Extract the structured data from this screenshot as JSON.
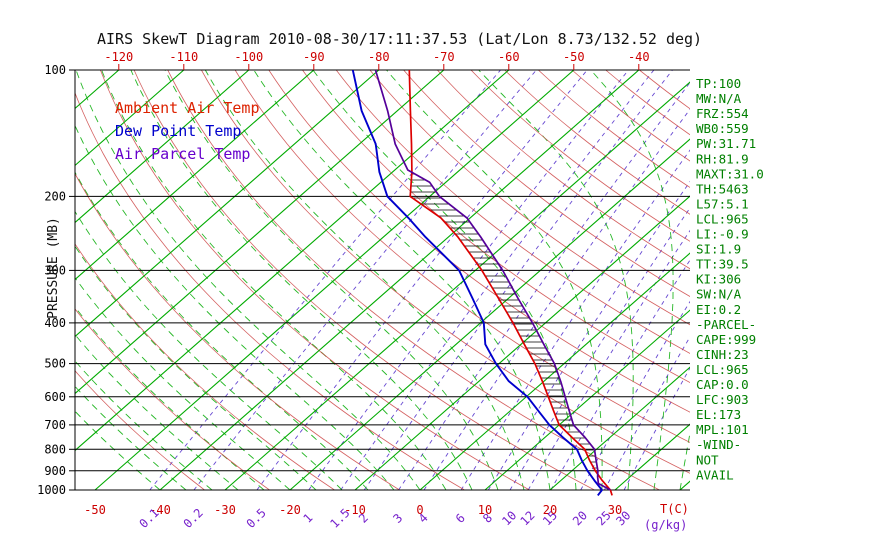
{
  "title": "AIRS SkewT Diagram 2010-08-30/17:11:37.53 (Lat/Lon 8.73/132.52 deg)",
  "legend": {
    "ambient": "Ambient Air Temp",
    "dewpoint": "Dew Point Temp",
    "parcel": "Air Parcel Temp"
  },
  "axes": {
    "pressure_label": "PRESSURE (MB)",
    "pressure_ticks": [
      100,
      200,
      300,
      400,
      500,
      600,
      700,
      800,
      900,
      1000
    ],
    "top_temp_ticks": [
      -120,
      -110,
      -100,
      -90,
      -80,
      -70,
      -60,
      -50,
      -40
    ],
    "bottom_temp_ticks": [
      -50,
      -40,
      -30,
      -20,
      -10,
      0,
      10,
      20,
      30
    ],
    "temp_unit": "T(C)",
    "mixing_ratio_unit": "(g/kg)"
  },
  "stats": [
    "TP:100",
    "MW:N/A",
    "FRZ:554",
    "WB0:559",
    "PW:31.71",
    "RH:81.9",
    "MAXT:31.0",
    "TH:5463",
    "L57:5.1",
    "LCL:965",
    "LI:-0.9",
    "SI:1.9",
    "TT:39.5",
    "KI:306",
    "SW:N/A",
    "EI:0.2",
    "-PARCEL-",
    "CAPE:999",
    "CINH:23",
    "LCL:965",
    "CAP:0.0",
    "LFC:903",
    "EL:173",
    "MPL:101",
    "-WIND-",
    "NOT",
    "AVAIL"
  ],
  "colors": {
    "isotherm_green": "#00aa00",
    "moist_adiabat_green": "#00aa00",
    "dry_adiabat_red": "#cc4444",
    "mixing_ratio_purple": "#5533cc",
    "mixing_label_purple": "#7722cc",
    "ambient_red": "#dd0000",
    "dewpoint_blue": "#0000cc",
    "parcel_purple": "#550099",
    "stats_green": "#008000",
    "tick_red": "#cc0000",
    "axis_black": "#000000"
  },
  "chart_data": {
    "type": "line",
    "title": "AIRS SkewT Diagram 2010-08-30/17:11:37.53 (Lat/Lon 8.73/132.52 deg)",
    "x_axis": {
      "label": "T(C)",
      "surface_range_c": [
        -50,
        40
      ],
      "skewed": true
    },
    "y_axis": {
      "label": "PRESSURE (MB)",
      "range_mb": [
        100,
        1000
      ],
      "scale": "log"
    },
    "series": [
      {
        "name": "Ambient Air Temp",
        "color": "#dd0000",
        "pressure_mb": [
          1030,
          1000,
          950,
          900,
          850,
          800,
          750,
          700,
          650,
          600,
          554,
          500,
          450,
          400,
          350,
          300,
          250,
          225,
          200,
          175,
          150,
          125,
          100
        ],
        "temp_c": [
          30.5,
          29.3,
          26.4,
          23.6,
          20.9,
          18.2,
          14.2,
          10.0,
          6.8,
          3.4,
          0.0,
          -4.5,
          -9.5,
          -15.0,
          -21.5,
          -29.0,
          -38.5,
          -44.5,
          -53.0,
          -57.0,
          -62.0,
          -68.0,
          -75.3
        ]
      },
      {
        "name": "Dew Point Temp",
        "color": "#0000cc",
        "pressure_mb": [
          1030,
          1000,
          950,
          900,
          850,
          800,
          750,
          700,
          650,
          600,
          550,
          500,
          450,
          400,
          350,
          300,
          250,
          225,
          200,
          175,
          150,
          125,
          100
        ],
        "temp_c": [
          28.3,
          28.0,
          25.2,
          22.4,
          19.7,
          17.0,
          12.8,
          8.5,
          4.5,
          0.2,
          -5.5,
          -10.5,
          -15.5,
          -19.5,
          -25.5,
          -32.5,
          -43.5,
          -49.5,
          -56.5,
          -62.0,
          -67.5,
          -75.5,
          -84.0
        ]
      },
      {
        "name": "Air Parcel Temp",
        "color": "#550099",
        "pressure_mb": [
          1000,
          965,
          930,
          900,
          850,
          800,
          750,
          700,
          650,
          600,
          554,
          500,
          450,
          400,
          350,
          300,
          250,
          225,
          200,
          185,
          173,
          150,
          125,
          100
        ],
        "temp_c": [
          29.3,
          26.3,
          25.0,
          24.0,
          21.9,
          19.7,
          16.2,
          12.2,
          9.2,
          6.0,
          2.8,
          -1.5,
          -6.5,
          -12.0,
          -18.5,
          -25.8,
          -35.0,
          -40.5,
          -48.5,
          -52.5,
          -58.0,
          -64.5,
          -71.5,
          -80.5
        ]
      }
    ],
    "background": {
      "isotherms_c": {
        "from": -130,
        "to": 40,
        "step": 10
      },
      "dry_adiabats_theta_k": {
        "from": 240,
        "to": 450,
        "step": 10
      },
      "moist_adiabats_start_c": {
        "from": -40,
        "to": 40,
        "step": 4
      },
      "mixing_ratio_g_kg": [
        0.1,
        0.2,
        0.5,
        1,
        1.5,
        2,
        3,
        4,
        6,
        8,
        10,
        12,
        15,
        20,
        25,
        30
      ],
      "pressure_lines_mb": [
        100,
        200,
        300,
        400,
        500,
        600,
        700,
        800,
        900,
        1000
      ]
    },
    "hatch_region": {
      "between": [
        "Ambient Air Temp",
        "Air Parcel Temp"
      ],
      "pressure_range_mb": [
        176,
        905
      ]
    },
    "annotations": {
      "lcl_mb": 965,
      "lfc_mb": 903,
      "el_mb": 173,
      "freezing_level_mb": 554,
      "cape_j_kg": 999,
      "cinh_j_kg": 23
    }
  }
}
